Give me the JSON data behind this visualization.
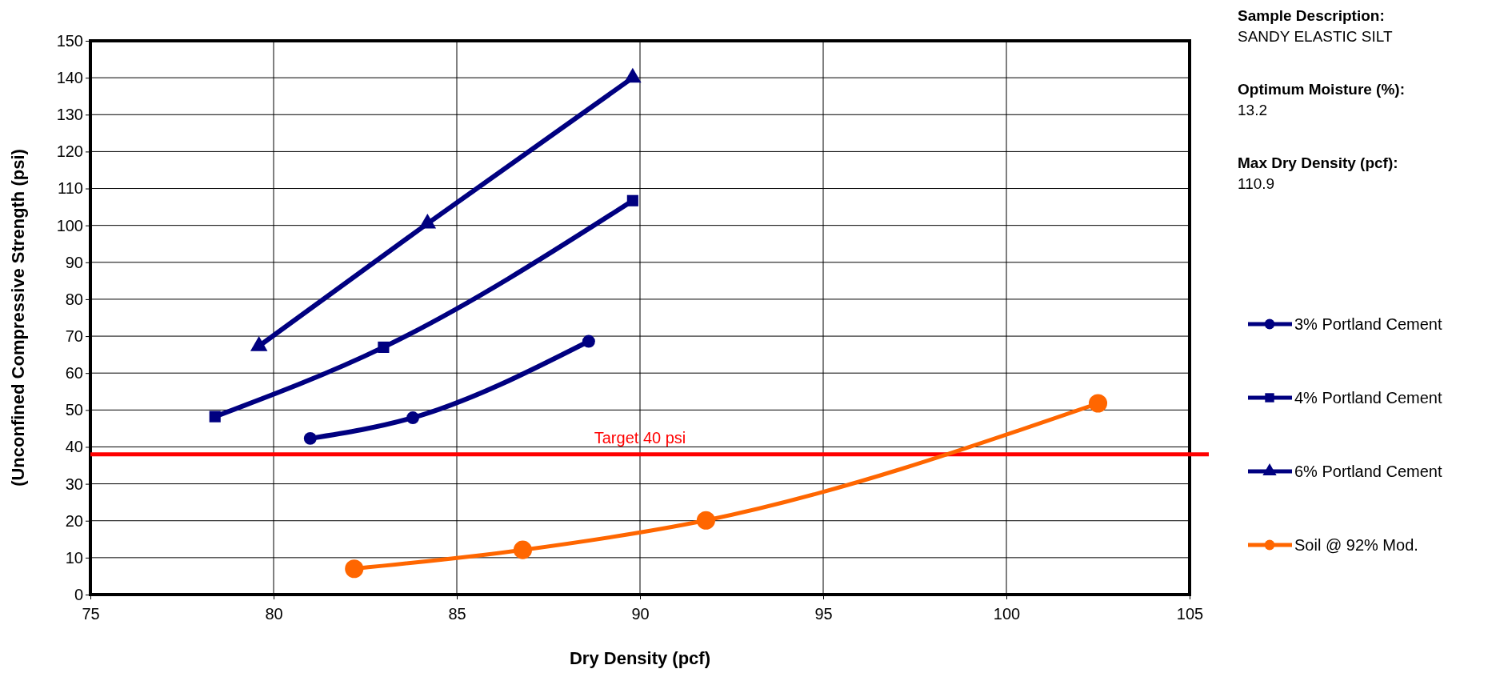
{
  "chart_data": {
    "type": "line",
    "xlabel": "Dry Density (pcf)",
    "ylabel": "(Unconfined Compressive Strength (psi)",
    "xlim": [
      75,
      105
    ],
    "xticks": [
      75,
      80,
      85,
      90,
      95,
      100,
      105
    ],
    "ylim": [
      0,
      150
    ],
    "yticks": [
      0,
      10,
      20,
      30,
      40,
      50,
      60,
      70,
      80,
      90,
      100,
      110,
      120,
      130,
      140,
      150
    ],
    "grid": true,
    "legend": "right",
    "series": [
      {
        "name": "3% Portland Cement",
        "color": "#000080",
        "marker": "circle",
        "x": [
          81.0,
          83.8,
          88.6
        ],
        "values": [
          42.3,
          47.9,
          68.6
        ]
      },
      {
        "name": "4% Portland Cement",
        "color": "#000080",
        "marker": "square",
        "x": [
          78.4,
          83.0,
          89.8
        ],
        "values": [
          48.2,
          67.0,
          106.7
        ]
      },
      {
        "name": "6% Portland Cement",
        "color": "#000080",
        "marker": "triangle",
        "x": [
          79.6,
          84.2,
          89.8
        ],
        "values": [
          67.3,
          100.5,
          140
        ]
      },
      {
        "name": "Soil @ 92% Mod.",
        "color": "#ff6600",
        "marker": "circle",
        "x": [
          82.2,
          86.8,
          91.8,
          102.5
        ],
        "values": [
          7.0,
          12.1,
          20.1,
          51.8
        ]
      }
    ],
    "ref_lines": [
      {
        "axis": "y",
        "value": 38,
        "label": "Target 40 psi",
        "color": "#ff0000"
      }
    ],
    "annotations": [
      "Sample Description:",
      "SANDY ELASTIC SILT",
      "Optimum Moisture (%):",
      "13.2",
      "Max Dry Density (pcf):",
      "110.9"
    ]
  }
}
